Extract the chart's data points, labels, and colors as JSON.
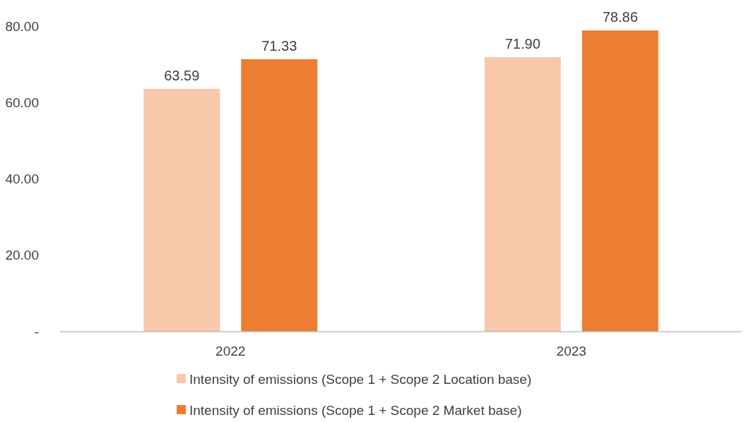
{
  "chart_data": {
    "type": "bar",
    "categories": [
      "2022",
      "2023"
    ],
    "series": [
      {
        "name": "Intensity of emissions (Scope 1 + Scope 2 Location base)",
        "color": "#f8c8aa",
        "values": [
          63.59,
          71.9
        ]
      },
      {
        "name": "Intensity of emissions (Scope 1 + Scope 2 Market base)",
        "color": "#ed7d31",
        "values": [
          71.33,
          78.86
        ]
      }
    ],
    "value_labels": [
      [
        "63.59",
        "71.90"
      ],
      [
        "71.33",
        "78.86"
      ]
    ],
    "ylim": [
      0,
      80
    ],
    "yticks": [
      {
        "value": 0,
        "label": "-"
      },
      {
        "value": 20,
        "label": "20.00"
      },
      {
        "value": 40,
        "label": "40.00"
      },
      {
        "value": 60,
        "label": "60.00"
      },
      {
        "value": 80,
        "label": "80.00"
      }
    ],
    "grid": false,
    "legend": "bottom"
  }
}
